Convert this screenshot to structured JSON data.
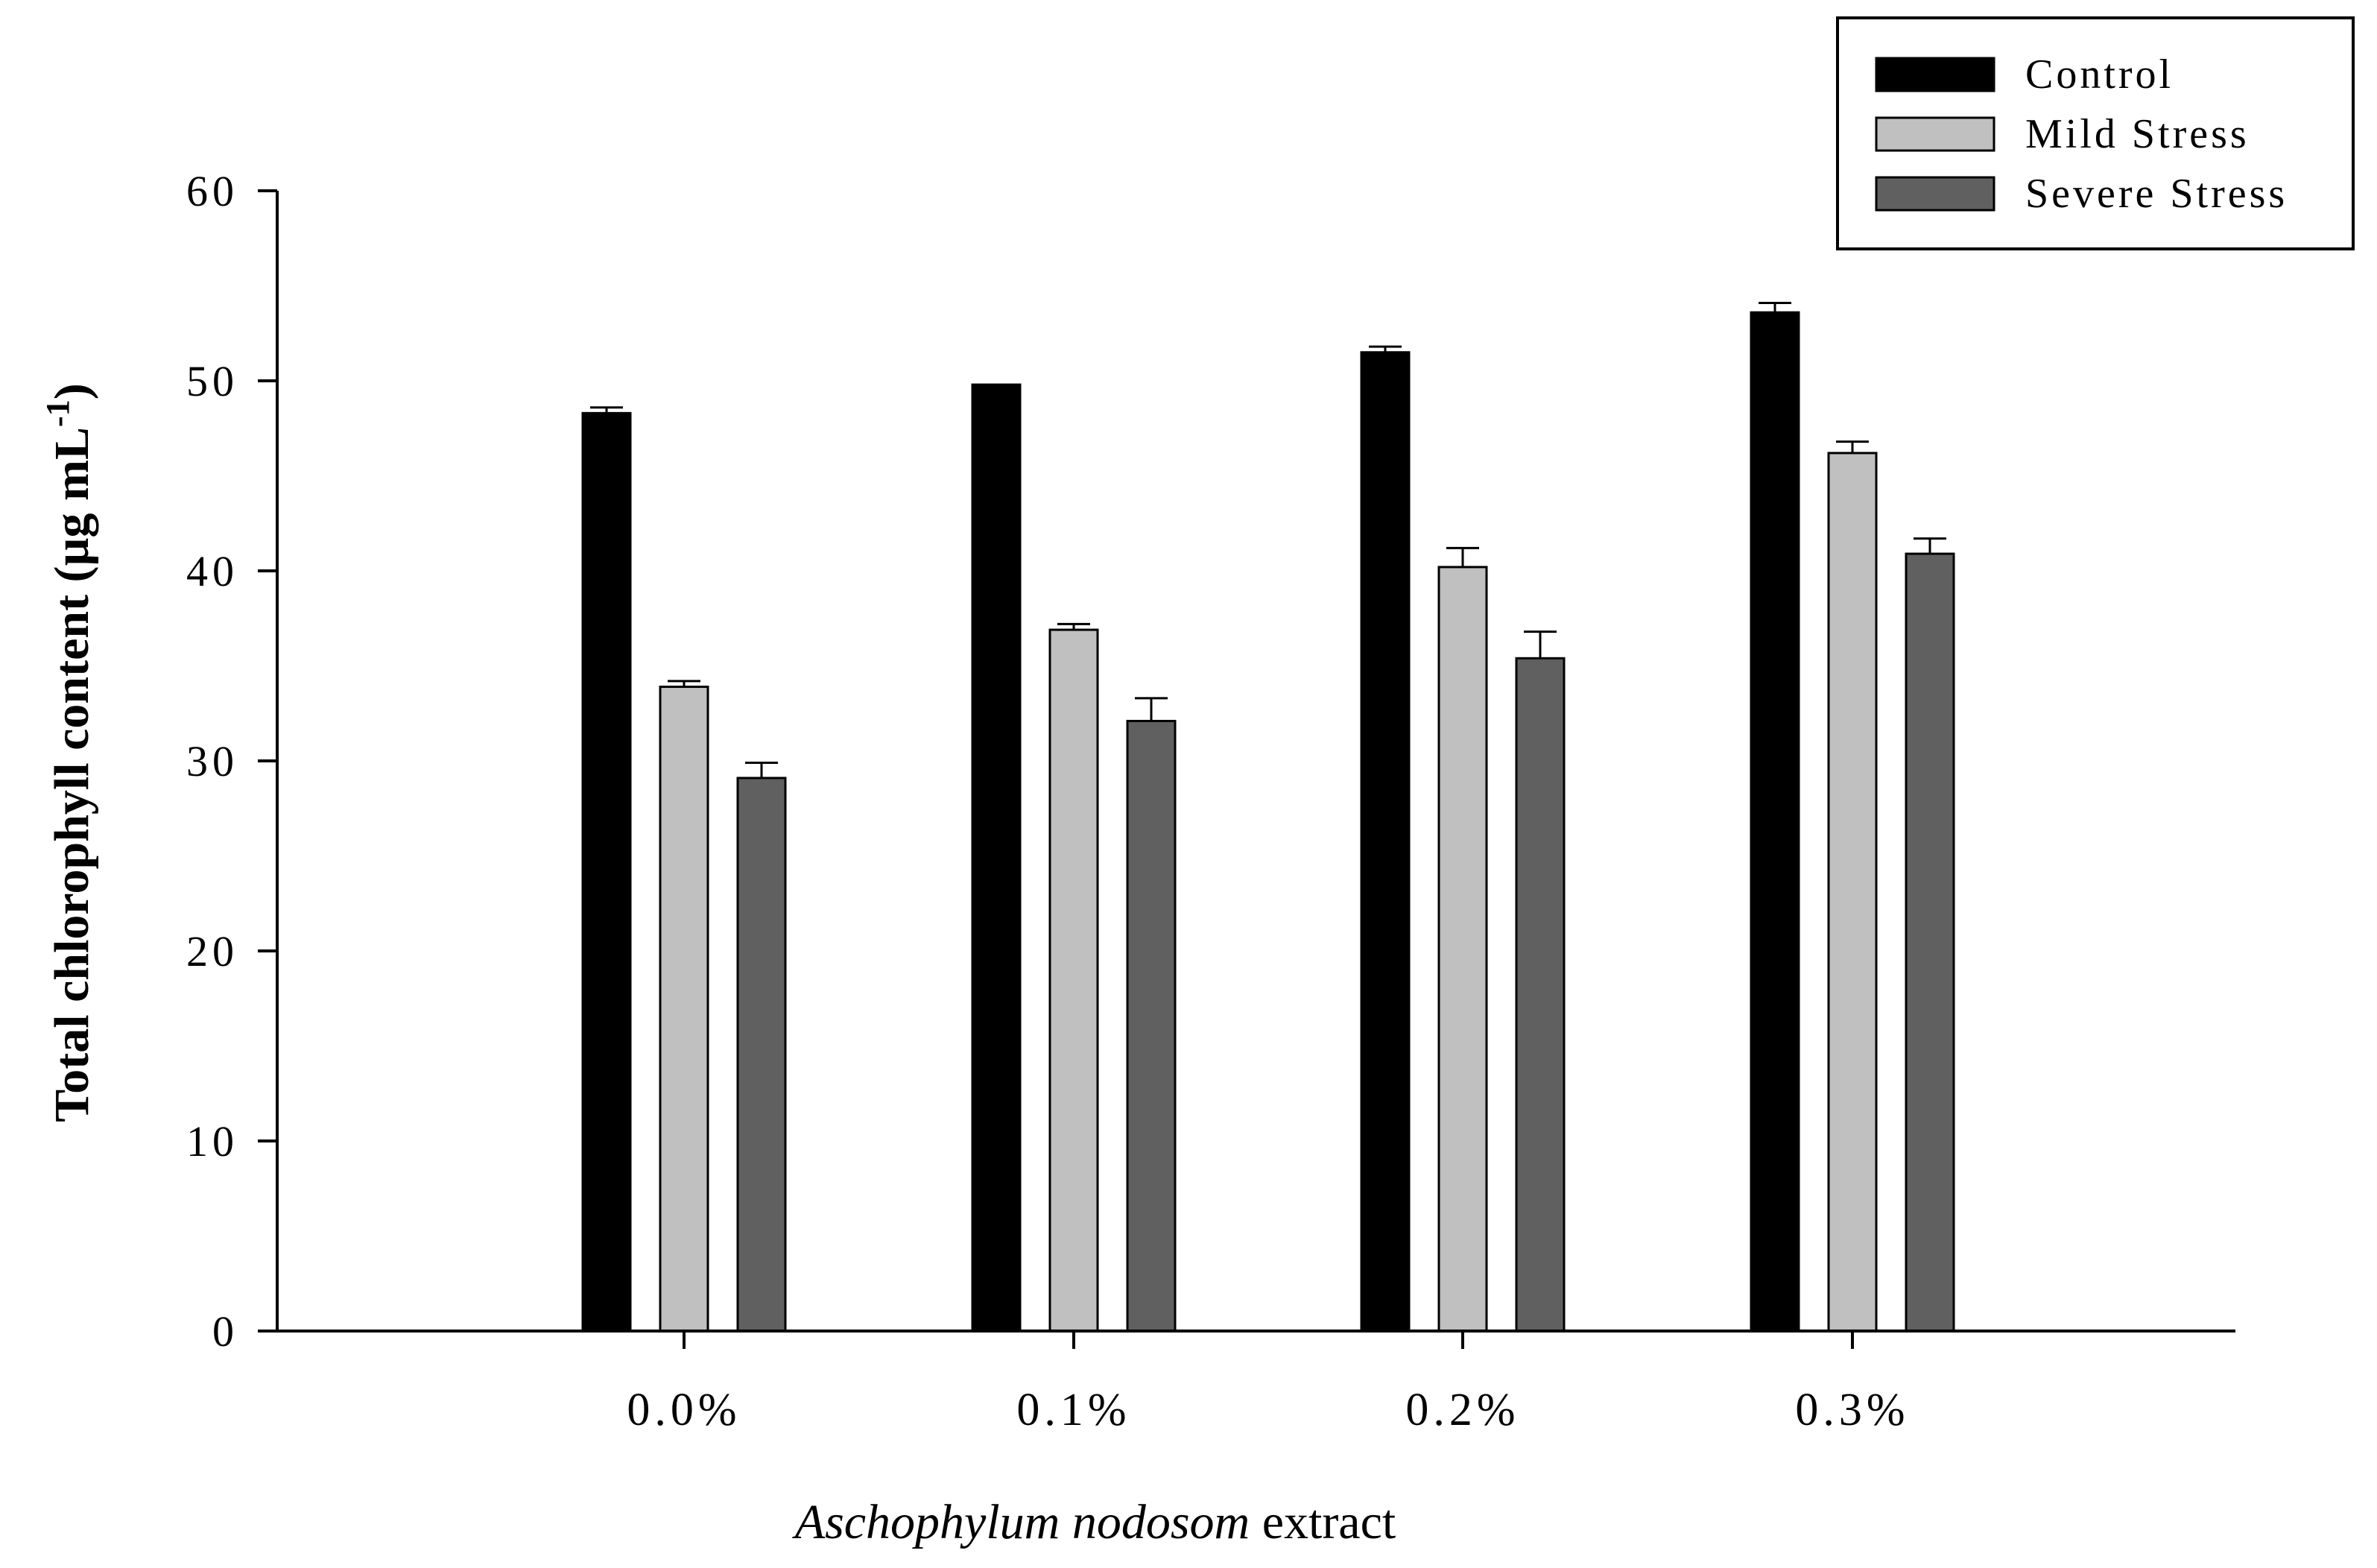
{
  "chart_data": {
    "type": "bar",
    "categories": [
      "0.0%",
      "0.1%",
      "0.2%",
      "0.3%"
    ],
    "series": [
      {
        "name": "Control",
        "color": "#000000",
        "values": [
          48.3,
          49.8,
          51.5,
          53.6
        ],
        "errors": [
          0.3,
          0.0,
          0.3,
          0.5
        ]
      },
      {
        "name": "Mild Stress",
        "color": "#c0c0c0",
        "values": [
          33.9,
          36.9,
          40.2,
          46.2
        ],
        "errors": [
          0.3,
          0.3,
          1.0,
          0.6
        ]
      },
      {
        "name": "Severe Stress",
        "color": "#606060",
        "values": [
          29.1,
          32.1,
          35.4,
          40.9
        ],
        "errors": [
          0.8,
          1.2,
          1.4,
          0.8
        ]
      }
    ],
    "ylim": [
      0,
      60
    ],
    "yticks": [
      0,
      10,
      20,
      30,
      40,
      50,
      60
    ],
    "xlabel_italic": "Aschophylum nodosom",
    "xlabel_rest": " extract",
    "ylabel": "Total chlorophyll content (µg mL",
    "ylabel_sup": "-1",
    "ylabel_close": ")",
    "legend_position": "top-right",
    "grid": false
  }
}
